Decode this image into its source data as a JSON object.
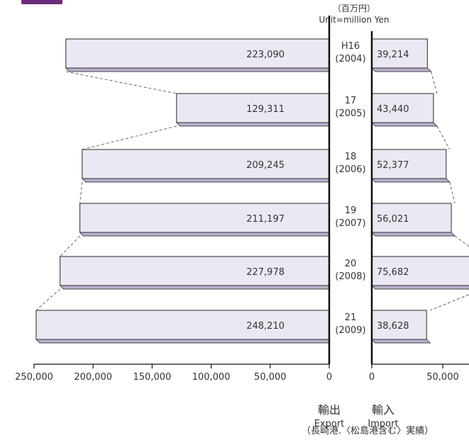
{
  "unit_ja": "（百万円）",
  "unit_en": "Unit=million Yen",
  "export_label": "輸出",
  "export_label_en": "Export",
  "import_label": "輸入",
  "import_label_en": "Import",
  "footnote": "（長崎港.〈松島港含む〉実績）",
  "colors": {
    "bar_face": "#ece8f3",
    "bar_side": "#b9afce",
    "bar_edge": "#4a4a4a",
    "accent": "#6b2c7c"
  },
  "chart_data": {
    "type": "bar",
    "orientation": "horizontal-butterfly",
    "categories": [
      {
        "era": "H16",
        "year": "(2004)"
      },
      {
        "era": "17",
        "year": "(2005)"
      },
      {
        "era": "18",
        "year": "(2006)"
      },
      {
        "era": "19",
        "year": "(2007)"
      },
      {
        "era": "20",
        "year": "(2008)"
      },
      {
        "era": "21",
        "year": "(2009)"
      }
    ],
    "series": [
      {
        "name": "輸出",
        "values": [
          223090,
          129311,
          209245,
          211197,
          227978,
          248210
        ],
        "labels": [
          "223,090",
          "129,311",
          "209,245",
          "211,197",
          "227,978",
          "248,210"
        ]
      },
      {
        "name": "輸入",
        "values": [
          39214,
          43440,
          52377,
          56021,
          75682,
          38628
        ],
        "labels": [
          "39,214",
          "43,440",
          "52,377",
          "56,021",
          "75,682",
          "38,628"
        ]
      }
    ],
    "export_axis": {
      "range": [
        0,
        250000
      ],
      "ticks": [
        250000,
        200000,
        150000,
        100000,
        50000,
        0
      ],
      "tick_labels": [
        "250,000",
        "200,000",
        "150,000",
        "100,000",
        "50,000",
        "0"
      ]
    },
    "import_axis": {
      "range": [
        0,
        80000
      ],
      "ticks": [
        0,
        50000
      ],
      "tick_labels": [
        "0",
        "50,000"
      ]
    },
    "grid": false,
    "connector_lines": "dashed"
  }
}
